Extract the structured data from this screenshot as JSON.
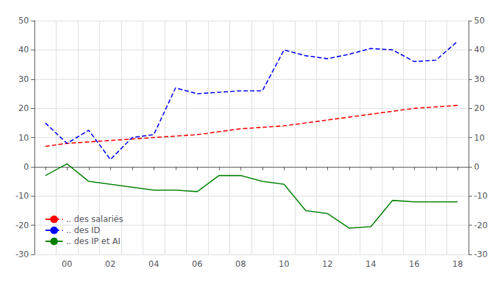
{
  "chart_data": {
    "type": "line",
    "categories": [
      null,
      "00",
      null,
      "02",
      null,
      "04",
      null,
      "06",
      null,
      "08",
      null,
      "10",
      null,
      "12",
      null,
      "14",
      null,
      "16",
      null,
      "18"
    ],
    "series": [
      {
        "name": ".. des salariés",
        "color": "#ff0000",
        "line_style": "dashed",
        "values": [
          7,
          8,
          8.5,
          9,
          9.5,
          10,
          10.5,
          11,
          12,
          13,
          13.5,
          14,
          15,
          16,
          17,
          18,
          19,
          20,
          20.5,
          21
        ]
      },
      {
        "name": ".. des ID",
        "color": "#0000ff",
        "line_style": "dashed",
        "values": [
          15,
          8,
          12.5,
          2.5,
          10,
          11,
          27,
          25,
          25.5,
          26,
          26,
          40,
          38,
          37,
          38.5,
          40.5,
          40,
          36,
          36.5,
          43
        ]
      },
      {
        "name": ".. des IP et AI",
        "color": "#008000",
        "line_style": "solid",
        "values": [
          -3,
          1,
          -5,
          -6,
          -7,
          -8,
          -8,
          -8.5,
          -3,
          -3,
          -5,
          -6,
          -15,
          -16,
          -21,
          -20.5,
          -11.5,
          -12,
          -12,
          -12
        ]
      }
    ],
    "ylim": [
      -30,
      50
    ],
    "yticks": [
      -30,
      -20,
      -10,
      0,
      10,
      20,
      30,
      40,
      50
    ],
    "y2lim": [
      -30,
      50
    ],
    "y2ticks": [
      -30,
      -20,
      -10,
      0,
      10,
      20,
      30,
      40,
      50
    ],
    "grid": true,
    "legend": "lower left"
  }
}
